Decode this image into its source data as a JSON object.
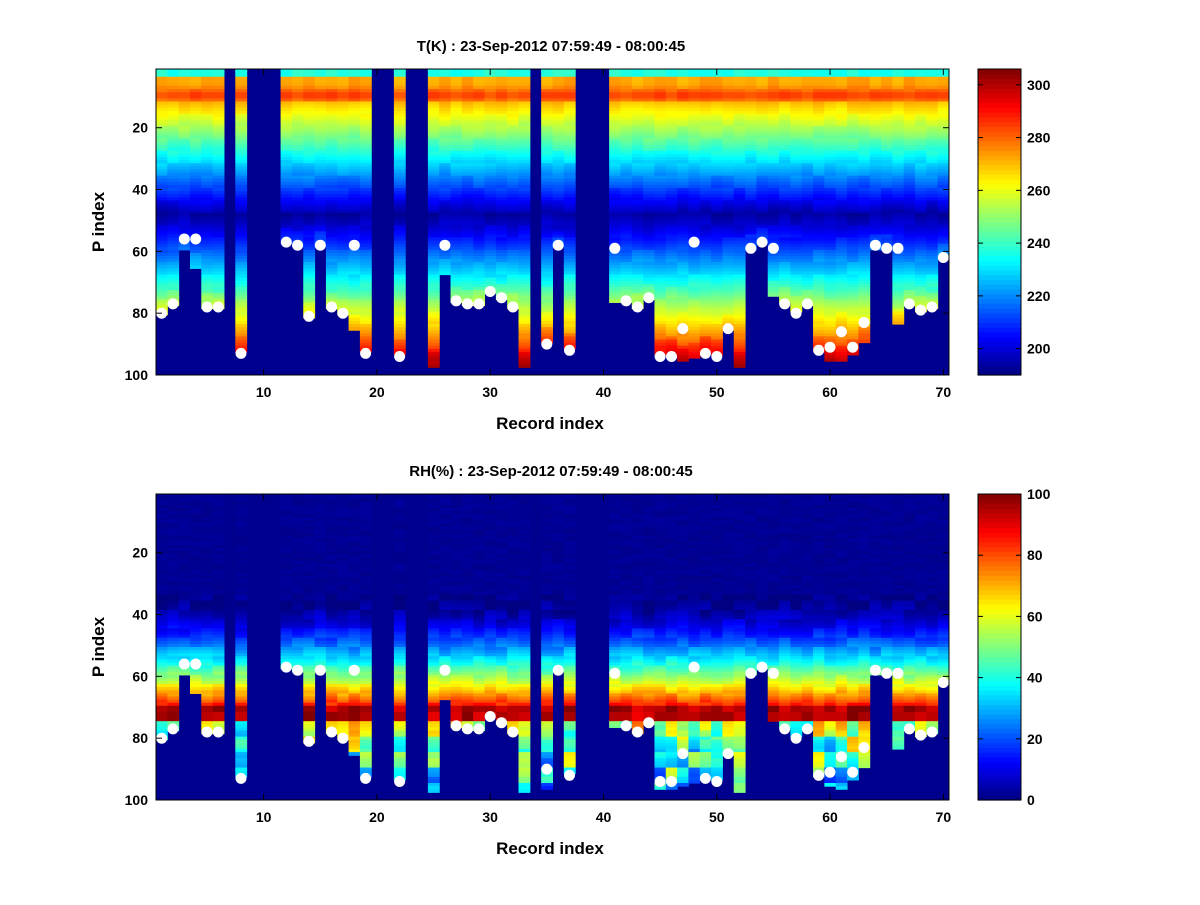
{
  "figure": {
    "background": "#ffffff"
  },
  "chart_data": [
    {
      "type": "heatmap",
      "id": "T",
      "title": "T(K) : 23-Sep-2012 07:59:49 - 08:00:45",
      "xlabel": "Record index",
      "ylabel": "P index",
      "xlim": [
        0.5,
        70.5
      ],
      "ylim": [
        1,
        100
      ],
      "y_direction": "reversed",
      "xticks": [
        10,
        20,
        30,
        40,
        50,
        60,
        70
      ],
      "yticks": [
        20,
        40,
        60,
        80,
        100
      ],
      "colormap": "jet",
      "clim": [
        190,
        306
      ],
      "colorbar_ticks": [
        200,
        220,
        240,
        260,
        280,
        300
      ],
      "missing_color": "#00008f",
      "records": 70,
      "levels": 100,
      "missing_records": [
        7,
        9,
        10,
        11,
        20,
        21,
        23,
        24,
        34,
        38,
        39,
        40
      ],
      "profile_bottom": [
        80,
        77,
        59,
        65,
        78,
        78,
        null,
        92,
        null,
        null,
        null,
        57,
        58,
        81,
        58,
        78,
        80,
        85,
        92,
        null,
        null,
        93,
        null,
        null,
        97,
        67,
        76,
        77,
        77,
        73,
        75,
        78,
        97,
        null,
        89,
        58,
        91,
        null,
        null,
        null,
        76,
        76,
        78,
        75,
        93,
        93,
        95,
        94,
        92,
        93,
        85,
        97,
        59,
        57,
        74,
        76,
        79,
        77,
        92,
        95,
        95,
        93,
        89,
        59,
        59,
        83,
        77,
        79,
        78,
        62
      ],
      "surface_markers": [
        80,
        77,
        56,
        56,
        78,
        78,
        null,
        93,
        null,
        null,
        null,
        57,
        58,
        81,
        58,
        78,
        80,
        58,
        93,
        null,
        null,
        94,
        null,
        null,
        null,
        58,
        76,
        77,
        77,
        73,
        75,
        78,
        null,
        null,
        90,
        58,
        92,
        null,
        null,
        null,
        59,
        76,
        78,
        75,
        94,
        94,
        85,
        57,
        93,
        94,
        85,
        null,
        59,
        57,
        59,
        77,
        80,
        77,
        92,
        91,
        86,
        91,
        83,
        58,
        59,
        59,
        77,
        79,
        78,
        62
      ]
    },
    {
      "type": "heatmap",
      "id": "RH",
      "title": "RH(%) : 23-Sep-2012 07:59:49 - 08:00:45",
      "xlabel": "Record index",
      "ylabel": "P index",
      "xlim": [
        0.5,
        70.5
      ],
      "ylim": [
        1,
        100
      ],
      "y_direction": "reversed",
      "xticks": [
        10,
        20,
        30,
        40,
        50,
        60,
        70
      ],
      "yticks": [
        20,
        40,
        60,
        80,
        100
      ],
      "colormap": "jet",
      "clim": [
        0,
        100
      ],
      "colorbar_ticks": [
        0,
        20,
        40,
        60,
        80,
        100
      ],
      "missing_color": "#00008f",
      "records": 70,
      "levels": 100,
      "missing_records": [
        7,
        9,
        10,
        11,
        20,
        21,
        23,
        24,
        34,
        38,
        39,
        40
      ],
      "profile_bottom": [
        80,
        77,
        59,
        65,
        78,
        78,
        null,
        92,
        null,
        null,
        null,
        57,
        58,
        81,
        58,
        78,
        80,
        85,
        92,
        null,
        null,
        93,
        null,
        null,
        97,
        67,
        76,
        77,
        77,
        73,
        75,
        78,
        97,
        null,
        96,
        58,
        91,
        null,
        null,
        null,
        76,
        76,
        78,
        75,
        96,
        96,
        95,
        94,
        92,
        93,
        85,
        97,
        59,
        57,
        74,
        76,
        79,
        77,
        92,
        95,
        96,
        93,
        89,
        59,
        59,
        83,
        77,
        79,
        78,
        62
      ],
      "surface_markers": [
        80,
        77,
        56,
        56,
        78,
        78,
        null,
        93,
        null,
        null,
        null,
        57,
        58,
        81,
        58,
        78,
        80,
        58,
        93,
        null,
        null,
        94,
        null,
        null,
        null,
        58,
        76,
        77,
        77,
        73,
        75,
        78,
        null,
        null,
        90,
        58,
        92,
        null,
        null,
        null,
        59,
        76,
        78,
        75,
        94,
        94,
        85,
        57,
        93,
        94,
        85,
        null,
        59,
        57,
        59,
        77,
        80,
        77,
        92,
        91,
        86,
        91,
        83,
        58,
        59,
        59,
        77,
        79,
        78,
        62
      ]
    }
  ]
}
